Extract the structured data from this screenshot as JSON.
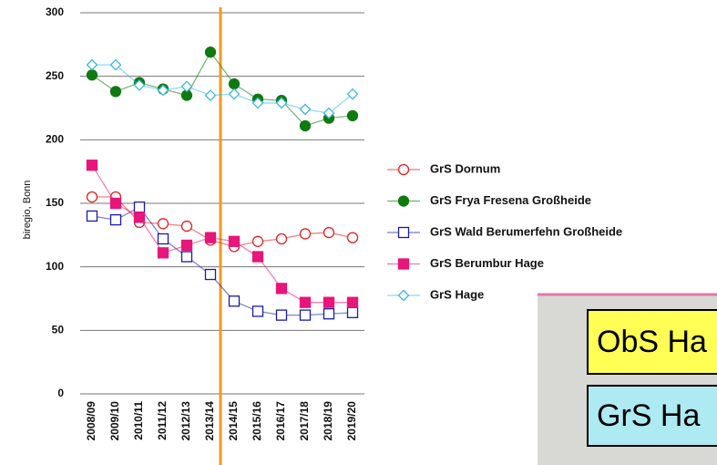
{
  "chart_data": {
    "type": "line",
    "y_label": "biregio, Bonn",
    "categories": [
      "2008/09",
      "2009/10",
      "2010/11",
      "2011/12",
      "2012/13",
      "2013/14",
      "2014/15",
      "2015/16",
      "2016/17",
      "2017/18",
      "2018/19",
      "2019/20"
    ],
    "series": [
      {
        "name": "GrS Dornum",
        "color": "#e02020",
        "marker": "circle-open",
        "values": [
          155,
          155,
          135,
          134,
          132,
          121,
          116,
          120,
          122,
          126,
          127,
          123
        ]
      },
      {
        "name": "GrS Frya Fresena Großheide",
        "color": "#107a10",
        "marker": "circle-filled",
        "values": [
          251,
          238,
          245,
          240,
          235,
          269,
          244,
          232,
          231,
          211,
          217,
          219
        ]
      },
      {
        "name": "GrS Wald Berumerfehn Großheide",
        "color": "#1a1aa8",
        "marker": "square-open",
        "values": [
          140,
          137,
          147,
          122,
          108,
          94,
          73,
          65,
          62,
          62,
          63,
          64
        ]
      },
      {
        "name": "GrS Berumbur Hage",
        "color": "#e8157a",
        "marker": "square-filled",
        "values": [
          180,
          150,
          139,
          111,
          117,
          123,
          120,
          108,
          83,
          72,
          72,
          72
        ]
      },
      {
        "name": "GrS Hage",
        "color": "#3cb8e0",
        "marker": "diamond-open",
        "values": [
          259,
          259,
          243,
          239,
          242,
          235,
          236,
          229,
          229,
          224,
          221,
          236
        ]
      }
    ],
    "ylim": [
      0,
      300
    ],
    "yticks": [
      0,
      50,
      100,
      150,
      200,
      250,
      300
    ],
    "grid": true
  },
  "map_inset": {
    "labels": [
      "ObS Ha",
      "GrS Ha"
    ]
  }
}
